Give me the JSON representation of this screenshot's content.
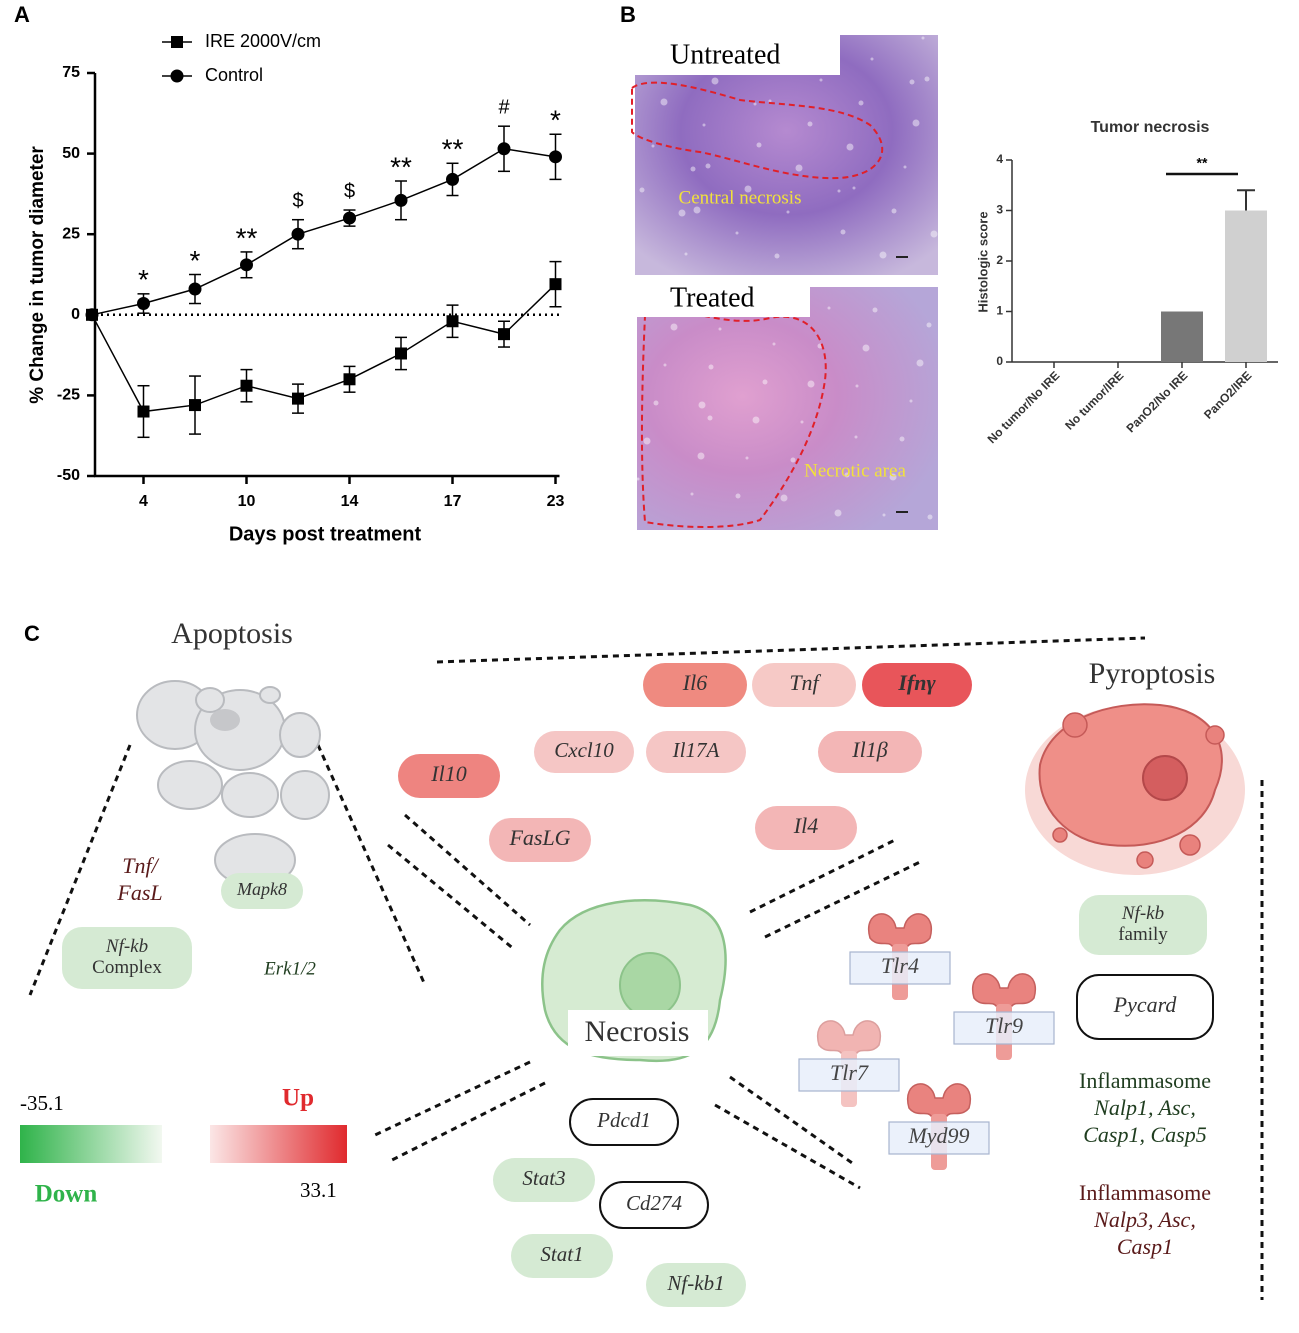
{
  "panels": [
    "A",
    "B",
    "C"
  ],
  "chart_data": [
    {
      "type": "line",
      "xlabel": "Days post treatment",
      "ylabel": "% Change in tumor diameter",
      "categories": [
        null,
        "4",
        null,
        "10",
        null,
        "14",
        null,
        "17",
        null,
        "23"
      ],
      "ylim": [
        -50,
        75
      ],
      "yticks": [
        -50,
        -25,
        0,
        25,
        50,
        75
      ],
      "reference_line": 0,
      "series": [
        {
          "name": "IRE 2000V/cm",
          "color": "#000000",
          "marker": "square",
          "values": [
            0,
            -30,
            -28,
            -22,
            -26,
            -20,
            -12,
            -2,
            -6,
            9.5
          ],
          "errors": [
            null,
            8,
            9,
            5,
            4.5,
            4,
            5,
            5,
            4,
            7
          ]
        },
        {
          "name": "Control",
          "color": "#000000",
          "marker": "circle",
          "values": [
            0,
            3.5,
            8,
            15.5,
            25,
            30,
            35.5,
            42,
            51.5,
            49
          ],
          "errors": [
            null,
            3,
            4.5,
            4,
            4.5,
            2.5,
            6,
            5,
            7,
            7
          ]
        }
      ],
      "annotations": [
        null,
        "*",
        "*",
        "**",
        "$",
        "$",
        "**",
        "**",
        "#",
        "*"
      ]
    },
    {
      "type": "bar",
      "title": "Tumor necrosis",
      "ylabel": "Histologic score",
      "categories": [
        "No tumor/No IRE",
        "No tumor/IRE",
        "PanO2/No IRE",
        "PanO2/IRE"
      ],
      "values": [
        0,
        0,
        1,
        3
      ],
      "errors": [
        null,
        null,
        null,
        0.4
      ],
      "colors": [
        "#777777",
        "#777777",
        "#777777",
        "#d0d0d0"
      ],
      "ylim": [
        0,
        4
      ],
      "yticks": [
        0,
        1,
        2,
        3,
        4
      ],
      "annotation": "**"
    }
  ],
  "images": [
    {
      "title": "Untreated",
      "caption": "Central necrosis"
    },
    {
      "title": "Treated",
      "caption": "Necrotic area"
    }
  ],
  "diagram": {
    "titles": [
      "Apoptosis",
      "Necrosis",
      "Pyroptosis"
    ],
    "nodes": [
      {
        "lines": [
          "Il6"
        ],
        "color": "#ef8a80"
      },
      {
        "lines": [
          "Tnf"
        ],
        "color": "#f6c9c6"
      },
      {
        "lines": [
          "Ifnγ"
        ],
        "color": "#e8555a"
      },
      {
        "lines": [
          "Cxcl10"
        ],
        "color": "#f5c6c5"
      },
      {
        "lines": [
          "Il17A"
        ],
        "color": "#f5c6c5"
      },
      {
        "lines": [
          "Il1β"
        ],
        "color": "#f3b6b6"
      },
      {
        "lines": [
          "Il10"
        ],
        "color": "#ee8480"
      },
      {
        "lines": [
          "FasLG"
        ],
        "color": "#f3b6b6"
      },
      {
        "lines": [
          "Il4"
        ],
        "color": "#f3b6b6"
      },
      {
        "lines": [
          "Mapk8"
        ],
        "color": "#d5ead3"
      },
      {
        "lines": [
          "Nf-kb",
          "Complex"
        ],
        "color": "#d5ead3"
      },
      {
        "lines": [
          "Nf-kb",
          "family"
        ],
        "color": "#d5ead3"
      },
      {
        "lines": [
          "Stat3"
        ],
        "color": "#d5ead3"
      },
      {
        "lines": [
          "Stat1"
        ],
        "color": "#d5ead3"
      },
      {
        "lines": [
          "Nf-kb1"
        ],
        "color": "#d5ead3"
      },
      {
        "lines": [
          "Pdcd1"
        ],
        "color": "#ffffff"
      },
      {
        "lines": [
          "Cd274"
        ],
        "color": "#ffffff"
      },
      {
        "lines": [
          "Pycard"
        ],
        "color": "#ffffff"
      }
    ],
    "texts": [
      {
        "lines": [
          "Tnf/",
          "FasL"
        ],
        "color": "#5a1a1a"
      },
      {
        "lines": [
          "Erk1/2"
        ],
        "color": "#1f3d1f"
      },
      {
        "lines": [
          "Inflammasome",
          "Nalp1, Asc,",
          "Casp1, Casp5"
        ],
        "color": "#1f3d1f"
      },
      {
        "lines": [
          "Inflammasome",
          "Nalp3, Asc,",
          "Casp1"
        ],
        "color": "#5a1a1a"
      }
    ],
    "receptors": [
      "Tlr4",
      "Tlr9",
      "Tlr7",
      "Myd99"
    ],
    "legend": {
      "min": -35.1,
      "max": 33.1,
      "up": "Up",
      "down": "Down",
      "low_color": "#2fb34a",
      "high_color": "#e02a2e"
    }
  }
}
